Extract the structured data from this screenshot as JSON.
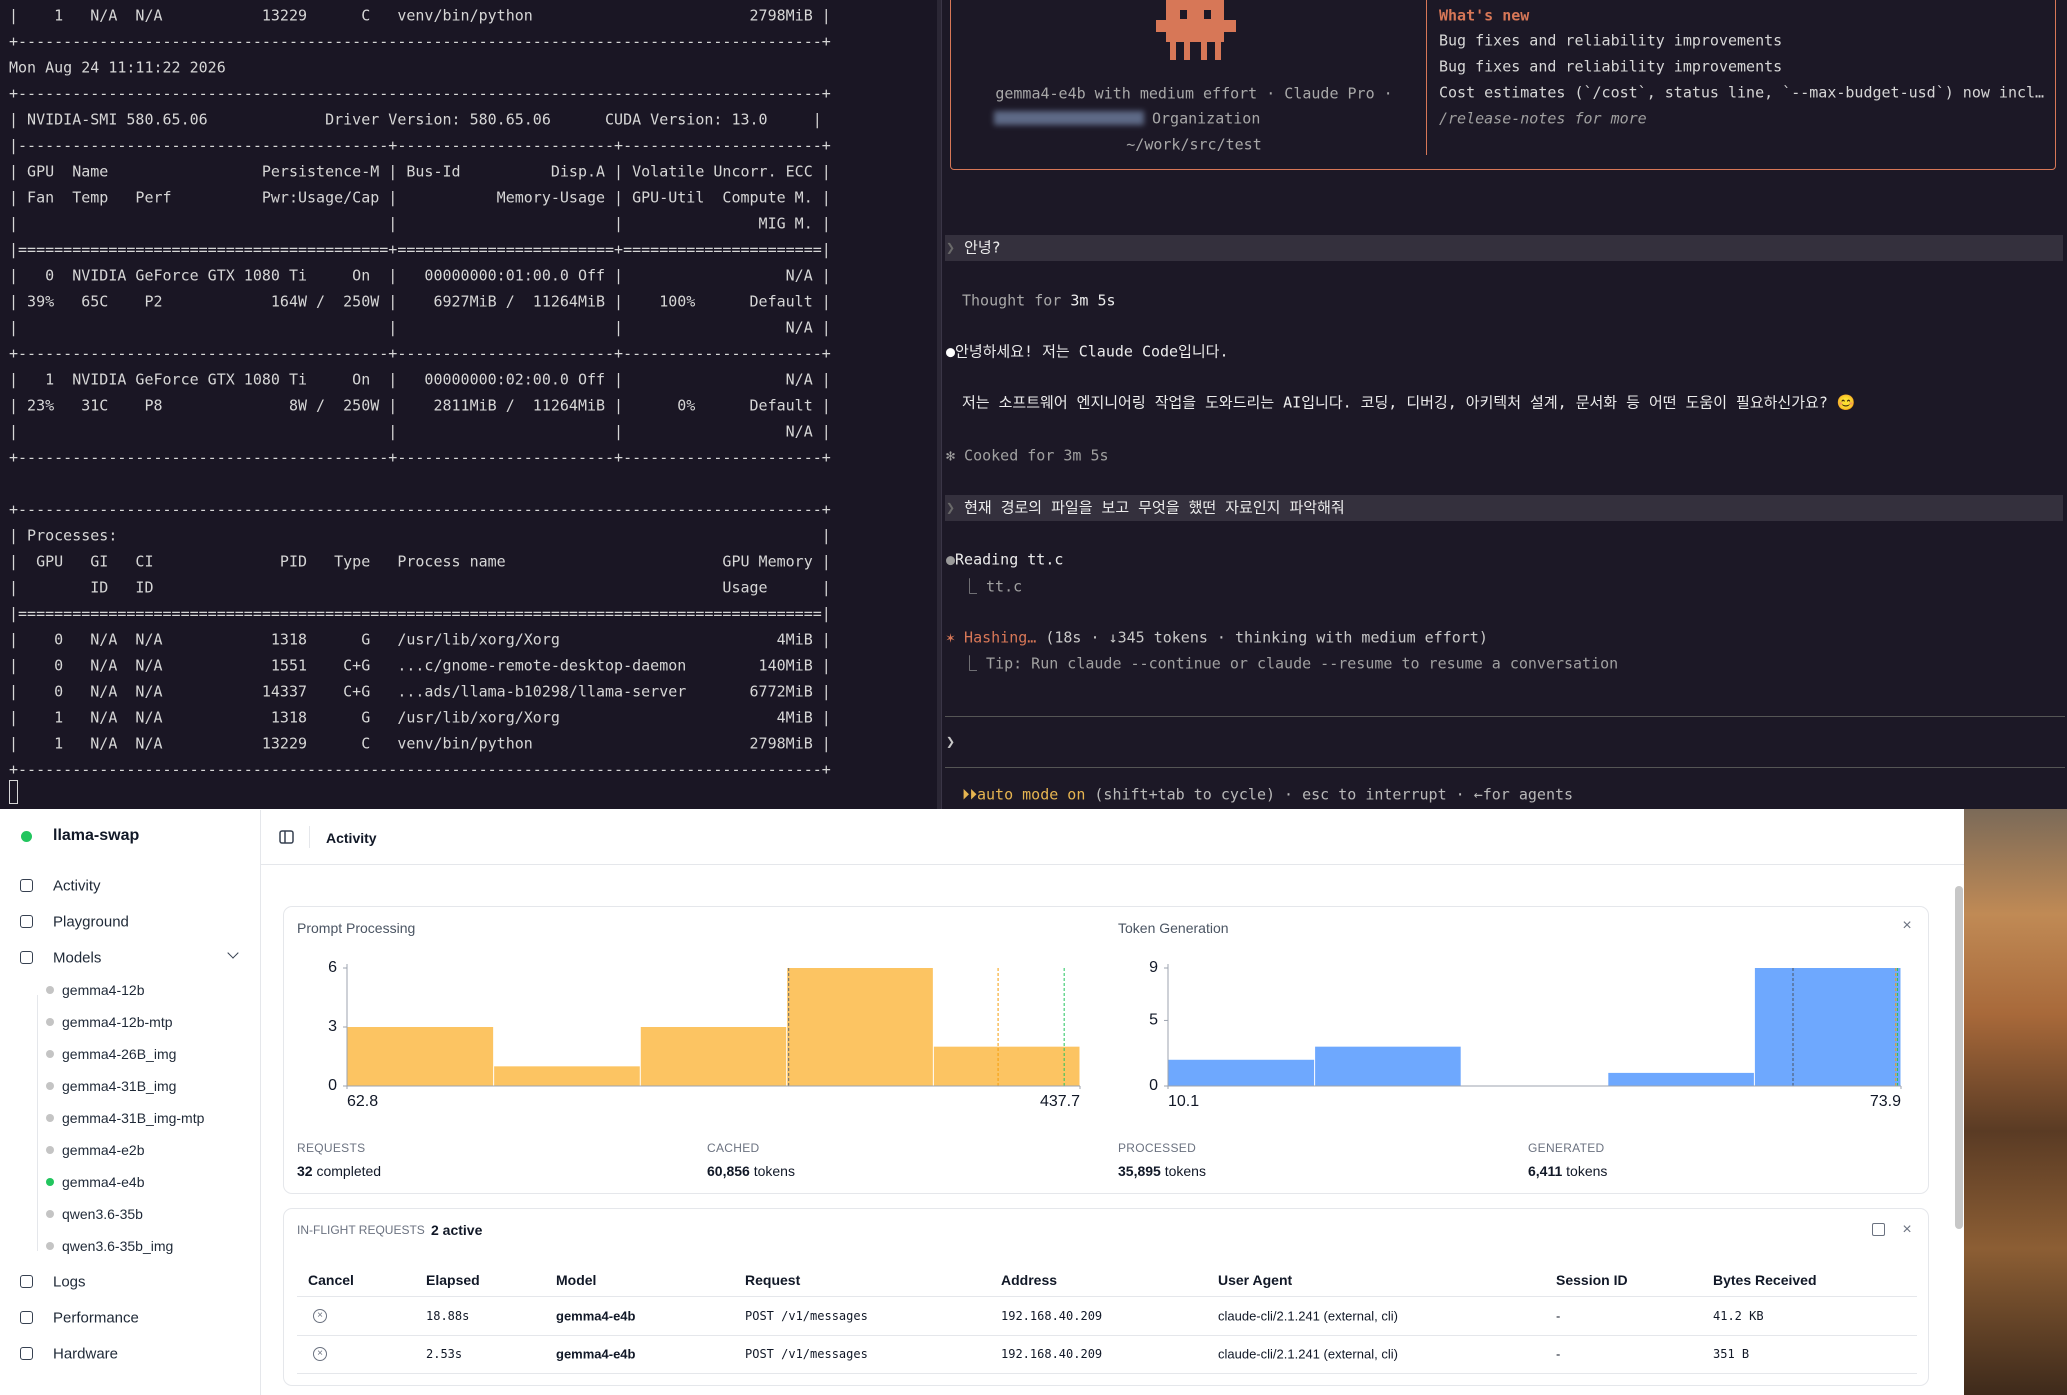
{
  "left_terminal": {
    "lines_top": [
      "|    1   N/A  N/A           13229      C   venv/bin/python                        2798MiB |",
      "+-----------------------------------------------------------------------------------------+",
      "Mon Aug 24 11:11:22 2026",
      "+-----------------------------------------------------------------------------------------+",
      "| NVIDIA-SMI 580.65.06             Driver Version: 580.65.06      CUDA Version: 13.0     |",
      "|-----------------------------------------+------------------------+----------------------+",
      "| GPU  Name                 Persistence-M | Bus-Id          Disp.A | Volatile Uncorr. ECC |",
      "| Fan  Temp   Perf          Pwr:Usage/Cap |           Memory-Usage | GPU-Util  Compute M. |",
      "|                                         |                        |               MIG M. |",
      "|=========================================+========================+======================|",
      "|   0  NVIDIA GeForce GTX 1080 Ti     On  |   00000000:01:00.0 Off |                  N/A |",
      "| 39%   65C    P2            164W /  250W |    6927MiB /  11264MiB |    100%      Default |",
      "|                                         |                        |                  N/A |",
      "+-----------------------------------------+------------------------+----------------------+",
      "|   1  NVIDIA GeForce GTX 1080 Ti     On  |   00000000:02:00.0 Off |                  N/A |",
      "| 23%   31C    P8              8W /  250W |    2811MiB /  11264MiB |      0%      Default |",
      "|                                         |                        |                  N/A |",
      "+-----------------------------------------+------------------------+----------------------+"
    ],
    "lines_bottom": [
      "+-----------------------------------------------------------------------------------------+",
      "| Processes:                                                                              |",
      "|  GPU   GI   CI              PID   Type   Process name                        GPU Memory |",
      "|        ID   ID                                                               Usage      |",
      "|=========================================================================================|",
      "|    0   N/A  N/A            1318      G   /usr/lib/xorg/Xorg                        4MiB |",
      "|    0   N/A  N/A            1551    C+G   ...c/gnome-remote-desktop-daemon        140MiB |",
      "|    0   N/A  N/A           14337    C+G   ...ads/llama-b10298/llama-server       6772MiB |",
      "|    1   N/A  N/A            1318      G   /usr/lib/xorg/Xorg                        4MiB |",
      "|    1   N/A  N/A           13229      C   venv/bin/python                        2798MiB |",
      "+-----------------------------------------------------------------------------------------+"
    ]
  },
  "right_terminal": {
    "banner": {
      "model_line": "gemma4-e4b with medium effort · Claude Pro ·",
      "org": "Organization",
      "path": "~/work/src/test",
      "whats_new_title": "What's new",
      "whats_new": [
        "Bug fixes and reliability improvements",
        "Bug fixes and reliability improvements",
        "Cost estimates (`/cost`, status line, `--max-budget-usd`) now incl…"
      ],
      "release_notes": "/release-notes for more"
    },
    "messages": [
      {
        "highlight": true,
        "spans": [
          {
            "text": "❯ ",
            "color": "#6a6a6a"
          },
          {
            "text": "안녕?",
            "color": "#ececec"
          }
        ]
      },
      {
        "spans": [
          {
            "text": "Thought for ",
            "color": "#a8a8a8"
          },
          {
            "text": "3m 5s",
            "color": "#ececec"
          }
        ]
      },
      {
        "spans": [
          {
            "text": "●",
            "color": "#ffffff"
          },
          {
            "text": "안녕하세요! 저는 Claude Code입니다.",
            "color": "#ececec"
          }
        ]
      },
      {
        "spans": [
          {
            "text": "저는 소프트웨어 엔지니어링 작업을 도와드리는 AI입니다. 코딩, 디버깅, 아키텍처 설계, 문서화 등 어떤 도움이 필요하신가요? 😊",
            "color": "#ececec"
          }
        ]
      },
      {
        "spans": [
          {
            "text": "✻ Cooked for 3m 5s",
            "color": "#a0a0a0"
          }
        ]
      },
      {
        "highlight": true,
        "spans": [
          {
            "text": "❯ ",
            "color": "#6a6a6a"
          },
          {
            "text": "현재 경로의 파일을 보고 무엇을 했떤 자료인지 파악해줘",
            "color": "#ececec"
          }
        ]
      },
      {
        "spans": [
          {
            "text": "●",
            "color": "#9a9a9a"
          },
          {
            "text": "Reading tt.c",
            "color": "#ececec"
          }
        ]
      },
      {
        "spans": [
          {
            "text": "⎿ tt.c",
            "color": "#a0a0a0"
          }
        ]
      },
      {
        "spans": [
          {
            "text": "✶ Hashing… ",
            "color": "#d77757"
          },
          {
            "text": "(18s · ↓345 tokens · thinking with medium effort)",
            "color": "#c8c8c8"
          }
        ]
      },
      {
        "spans": [
          {
            "text": "⎿ Tip: Run claude --continue or claude --resume to resume a conversation",
            "color": "#a0a0a0"
          }
        ]
      },
      {
        "spans": [
          {
            "text": "❯",
            "color": "#c8c8c8"
          }
        ]
      },
      {
        "spans": [
          {
            "text": "⏵⏵auto mode on",
            "color": "#e6b450"
          },
          {
            "text": " (shift+tab to cycle) · esc to interrupt · ←for agents",
            "color": "#b8b8b8"
          }
        ]
      }
    ]
  },
  "sidebar": {
    "app_name": "llama-swap",
    "nav": [
      "Activity",
      "Playground",
      "Models"
    ],
    "models": [
      {
        "name": "gemma4-12b",
        "color": "#c4c4c4"
      },
      {
        "name": "gemma4-12b-mtp",
        "color": "#c4c4c4"
      },
      {
        "name": "gemma4-26B_img",
        "color": "#c4c4c4"
      },
      {
        "name": "gemma4-31B_img",
        "color": "#c4c4c4"
      },
      {
        "name": "gemma4-31B_img-mtp",
        "color": "#c4c4c4"
      },
      {
        "name": "gemma4-e2b",
        "color": "#c4c4c4"
      },
      {
        "name": "gemma4-e4b",
        "color": "#22c55e"
      },
      {
        "name": "qwen3.6-35b",
        "color": "#c4c4c4"
      },
      {
        "name": "qwen3.6-35b_img",
        "color": "#c4c4c4"
      }
    ],
    "nav_bottom": [
      "Logs",
      "Performance",
      "Hardware"
    ]
  },
  "header": {
    "title": "Activity"
  },
  "chart_data": [
    {
      "type": "histogram",
      "title": "Prompt Processing",
      "color": "#fcc462",
      "bins": [
        62.8,
        137.8,
        212.8,
        287.7,
        362.7,
        437.7
      ],
      "values": [
        3,
        1,
        3,
        6,
        2
      ],
      "xlim": [
        62.8,
        437.7
      ],
      "xticks": [
        62.8,
        437.7
      ],
      "ylim": [
        0,
        6
      ],
      "yticks": [
        0,
        3,
        6
      ],
      "reference_lines": [
        {
          "value": 288.7,
          "color": "#6b6b6b"
        },
        {
          "value": 395.8,
          "color": "#f59e0b"
        },
        {
          "value": 429.6,
          "color": "#22c55e"
        }
      ]
    },
    {
      "type": "histogram",
      "title": "Token Generation",
      "color": "#6ea8fe",
      "bins": [
        10.1,
        22.86,
        35.62,
        48.38,
        61.14,
        73.9
      ],
      "values": [
        2,
        3,
        0,
        1,
        9
      ],
      "xlim": [
        10.1,
        73.9
      ],
      "xticks": [
        10.1,
        73.9
      ],
      "ylim": [
        0,
        9
      ],
      "yticks": [
        0,
        5,
        9
      ],
      "reference_lines": [
        {
          "value": 64.5,
          "color": "#4b5563"
        },
        {
          "value": 73.45,
          "color": "#f59e0b"
        },
        {
          "value": 73.6,
          "color": "#22c55e"
        }
      ]
    }
  ],
  "stats": [
    {
      "label": "REQUESTS",
      "value": "32",
      "unit": " completed"
    },
    {
      "label": "CACHED",
      "value": "60,856",
      "unit": " tokens"
    },
    {
      "label": "PROCESSED",
      "value": "35,895",
      "unit": " tokens"
    },
    {
      "label": "GENERATED",
      "value": "6,411",
      "unit": " tokens"
    }
  ],
  "inflight": {
    "label": "IN-FLIGHT REQUESTS",
    "count": "2 active",
    "columns": [
      "Cancel",
      "Elapsed",
      "Model",
      "Request",
      "Address",
      "User Agent",
      "Session ID",
      "Bytes Received"
    ],
    "rows": [
      [
        "18.88s",
        "gemma4-e4b",
        "POST /v1/messages",
        "192.168.40.209",
        "claude-cli/2.1.241 (external, cli)",
        "-",
        "41.2 KB"
      ],
      [
        "2.53s",
        "gemma4-e4b",
        "POST /v1/messages",
        "192.168.40.209",
        "claude-cli/2.1.241 (external, cli)",
        "-",
        "351 B"
      ]
    ]
  }
}
